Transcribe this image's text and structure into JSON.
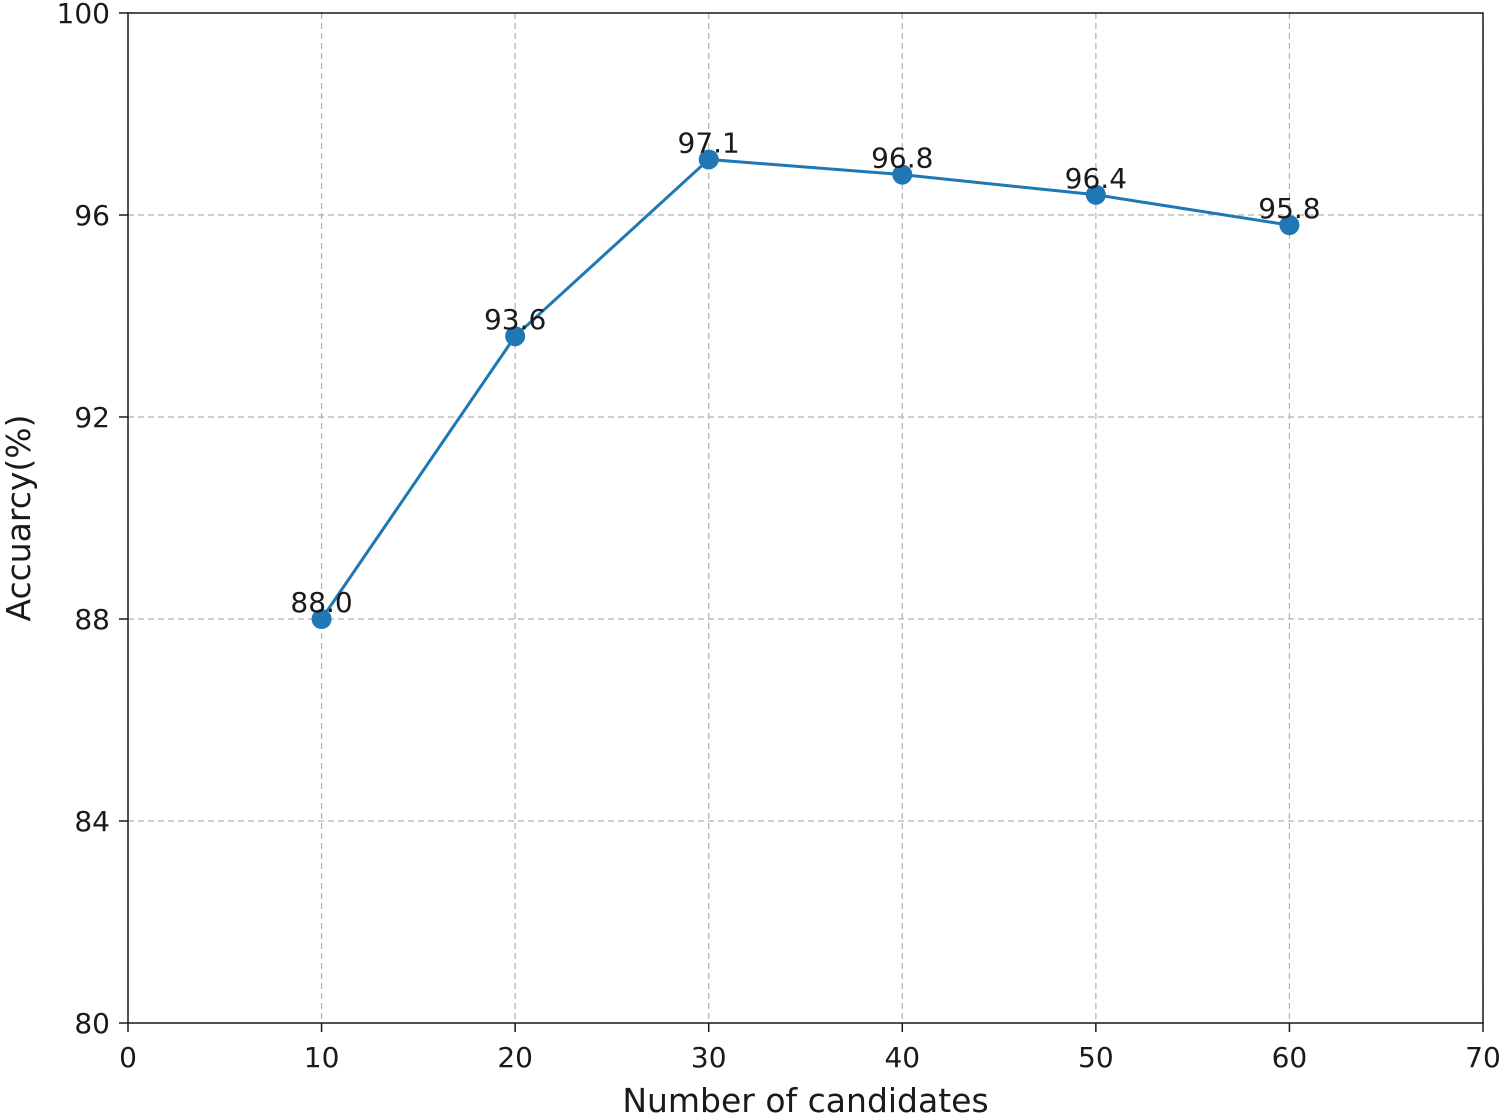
{
  "chart_data": {
    "type": "line",
    "title": "",
    "xlabel": "Number of candidates",
    "ylabel": "Accuarcy(%)",
    "xlim": [
      0,
      70
    ],
    "ylim": [
      80,
      100
    ],
    "xticks": [
      0,
      10,
      20,
      30,
      40,
      50,
      60,
      70
    ],
    "yticks": [
      80,
      84,
      88,
      92,
      96,
      100
    ],
    "grid": true,
    "series": [
      {
        "color": "#1f77b4",
        "x": [
          10,
          20,
          30,
          40,
          50,
          60
        ],
        "y": [
          88.0,
          93.6,
          97.1,
          96.8,
          96.4,
          95.8
        ],
        "labels": [
          "88.0",
          "93.6",
          "97.1",
          "96.8",
          "96.4",
          "95.8"
        ]
      }
    ]
  }
}
